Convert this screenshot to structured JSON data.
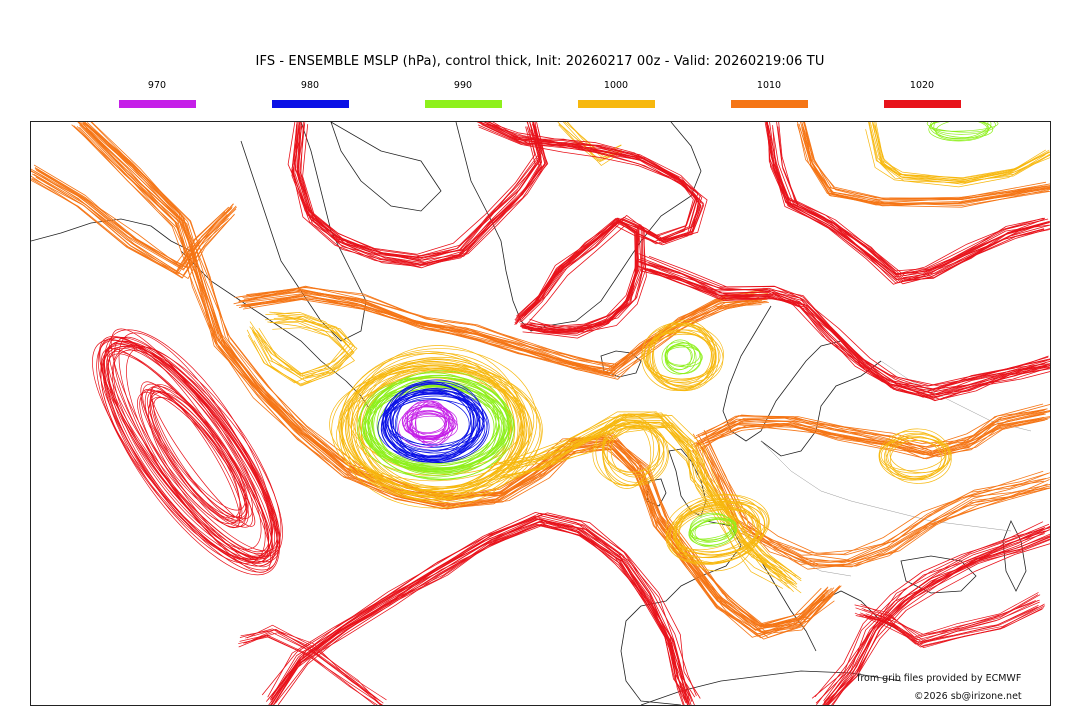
{
  "title": "IFS - ENSEMBLE MSLP (hPa), control thick, Init: 20260217 00z - Valid: 20260219:06 TU",
  "legend": [
    {
      "label": "970",
      "color": "#c51fe8"
    },
    {
      "label": "980",
      "color": "#0a10e6"
    },
    {
      "label": "990",
      "color": "#8ef01c"
    },
    {
      "label": "1000",
      "color": "#f7b80e"
    },
    {
      "label": "1010",
      "color": "#f57515"
    },
    {
      "label": "1020",
      "color": "#e8131b"
    }
  ],
  "map": {
    "description_features": [
      "deep-low-iceland",
      "high-azores",
      "high-pacific",
      "high-greenland",
      "high-scandinavia",
      "low-north-sea",
      "low-norwegian-sea"
    ]
  },
  "credits": {
    "source": "from grib files provided by ECMWF",
    "copyright": "©2026 sb@irizone.net"
  }
}
